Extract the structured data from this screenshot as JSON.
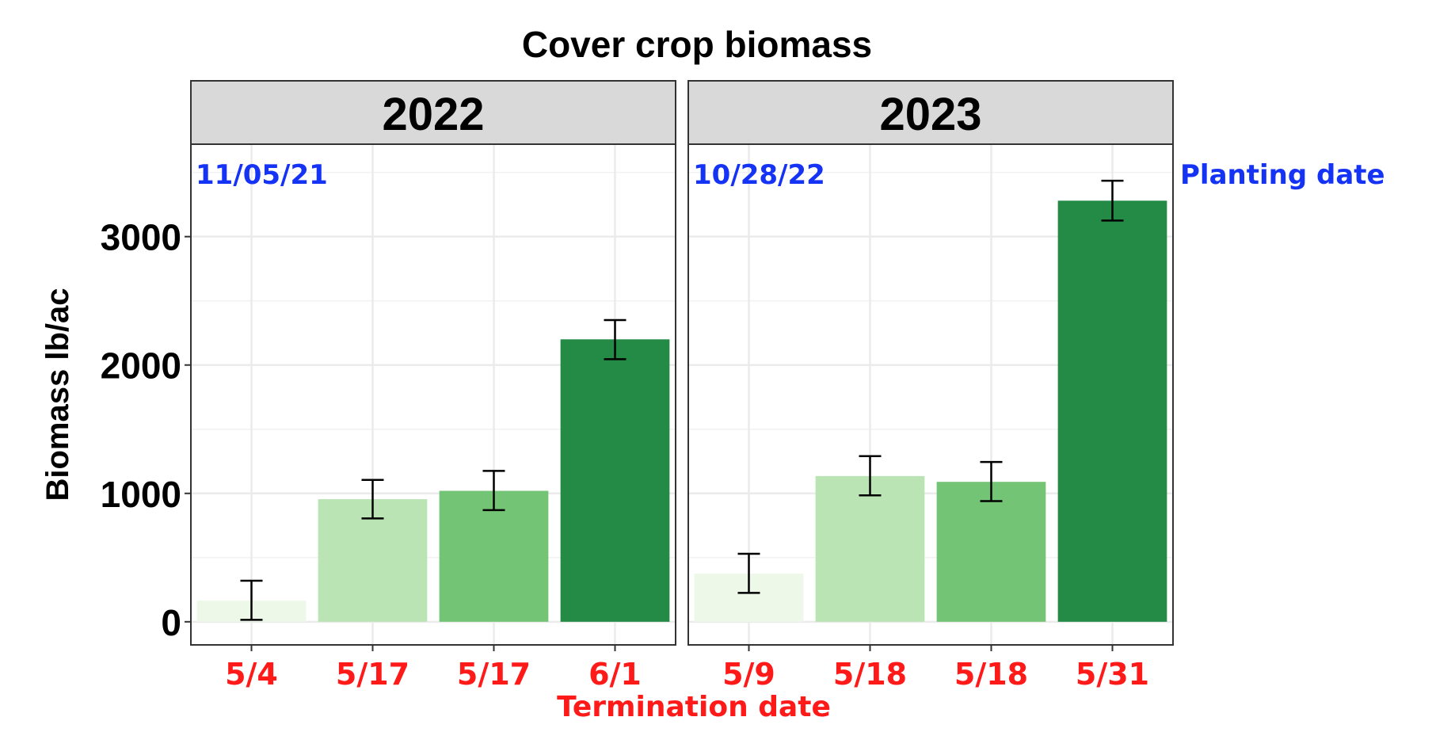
{
  "chart_data": {
    "type": "bar",
    "title": "Cover crop biomass",
    "ylabel": "Biomass lb/ac",
    "xlabel": "Termination date",
    "ylim": [
      -180,
      3720
    ],
    "yticks": [
      0,
      1000,
      2000,
      3000
    ],
    "grid": true,
    "facet_strip_color": "#d9d9d9",
    "annotation_color": "#1533f5",
    "xlabel_color": "#ff1a1a",
    "planting_label": "Planting date",
    "panels": [
      {
        "name": "2022",
        "planting_date": "11/05/21",
        "categories": [
          "5/4",
          "5/17",
          "5/17",
          "6/1"
        ],
        "values": [
          165,
          955,
          1020,
          2200
        ],
        "error_low": [
          15,
          805,
          870,
          2045
        ],
        "error_high": [
          320,
          1105,
          1175,
          2350
        ],
        "colors": [
          "#edf8e9",
          "#bae4b3",
          "#74c476",
          "#238b45"
        ]
      },
      {
        "name": "2023",
        "planting_date": "10/28/22",
        "categories": [
          "5/9",
          "5/18",
          "5/18",
          "5/31"
        ],
        "values": [
          375,
          1135,
          1090,
          3280
        ],
        "error_low": [
          225,
          985,
          940,
          3125
        ],
        "error_high": [
          530,
          1290,
          1245,
          3435
        ],
        "colors": [
          "#edf8e9",
          "#bae4b3",
          "#74c476",
          "#238b45"
        ]
      }
    ]
  }
}
